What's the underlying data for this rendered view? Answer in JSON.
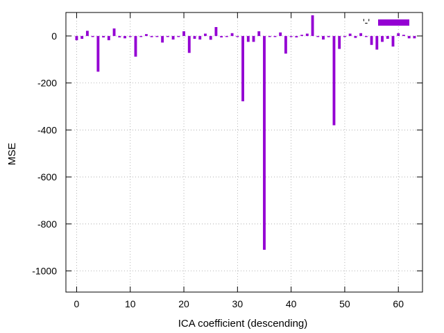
{
  "chart_data": {
    "type": "bar",
    "xlabel": "ICA coefficient (descending)",
    "ylabel": "MSE",
    "xlim": [
      -2,
      64.5
    ],
    "ylim": [
      -1090,
      100
    ],
    "xticks": [
      0,
      10,
      20,
      30,
      40,
      50,
      60
    ],
    "yticks": [
      0,
      -200,
      -400,
      -600,
      -800,
      -1000
    ],
    "grid": true,
    "legend_position": "top-right",
    "series": [
      {
        "name": "'-'",
        "color": "#9400d3",
        "x": [
          0,
          1,
          2,
          3,
          4,
          5,
          6,
          7,
          8,
          9,
          10,
          11,
          12,
          13,
          14,
          15,
          16,
          17,
          18,
          19,
          20,
          21,
          22,
          23,
          24,
          25,
          26,
          27,
          28,
          29,
          30,
          31,
          32,
          33,
          34,
          35,
          36,
          37,
          38,
          39,
          40,
          41,
          42,
          43,
          44,
          45,
          46,
          47,
          48,
          49,
          50,
          51,
          52,
          53,
          54,
          55,
          56,
          57,
          58,
          59,
          60,
          61,
          62,
          63
        ],
        "values": [
          -18,
          -12,
          22,
          -2,
          -152,
          -6,
          -18,
          32,
          -6,
          -10,
          -2,
          -88,
          -3,
          8,
          -5,
          -3,
          -28,
          -3,
          -15,
          -3,
          20,
          -72,
          -12,
          -15,
          10,
          -16,
          38,
          -6,
          -2,
          12,
          -2,
          -278,
          -25,
          -25,
          20,
          -910,
          -2,
          -3,
          15,
          -75,
          -2,
          -6,
          5,
          10,
          88,
          -3,
          -15,
          -5,
          -380,
          -55,
          -2,
          10,
          -8,
          12,
          -2,
          -38,
          -58,
          -25,
          -12,
          -45,
          12,
          5,
          -10,
          -10
        ]
      }
    ]
  }
}
